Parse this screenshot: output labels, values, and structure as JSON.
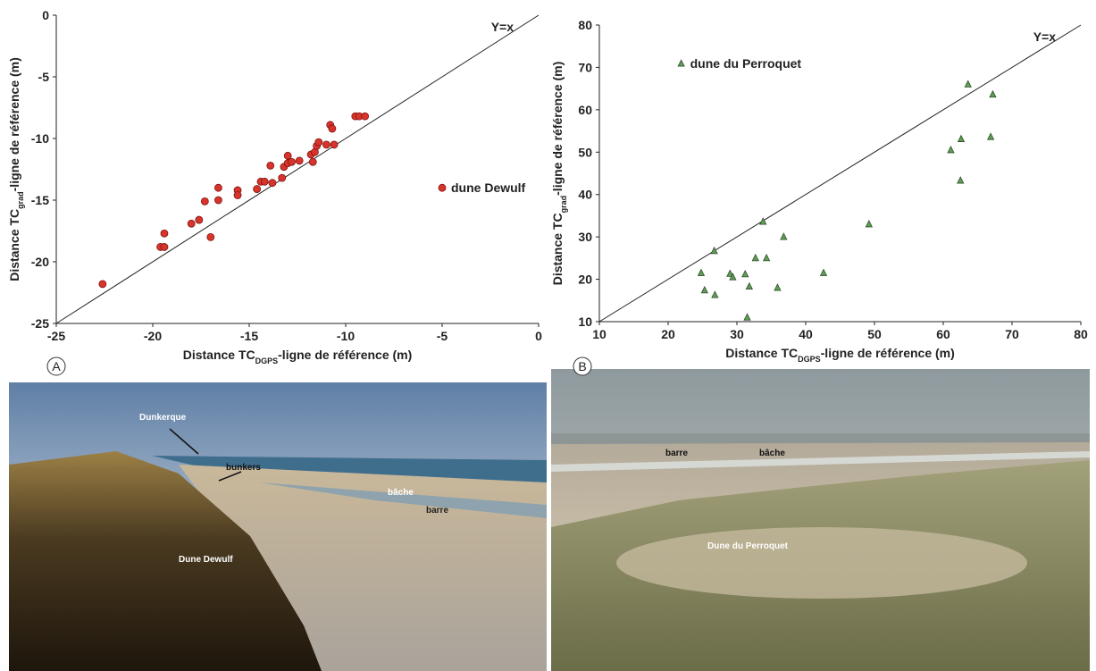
{
  "chart_data": [
    {
      "type": "scatter",
      "marker": "circle",
      "color": "#d9342b",
      "xlabel": [
        "Distance TC",
        "DGPS",
        "-ligne de référence (m)"
      ],
      "ylabel": [
        "Distance TC",
        "grad",
        "-ligne de référence (m)"
      ],
      "annotation": "Y=x",
      "legend": "right",
      "xlim": [
        -25,
        0
      ],
      "ylim": [
        -25,
        0
      ],
      "xticks": [
        -25,
        -20,
        -15,
        -10,
        -5,
        0
      ],
      "yticks": [
        -25,
        -20,
        -15,
        -10,
        -5,
        0
      ],
      "series": [
        {
          "name": "dune Dewulf",
          "color": "#d9342b",
          "x": [
            -22.6,
            -19.6,
            -19.4,
            -19.4,
            -18,
            -17.6,
            -17.3,
            -17,
            -16.6,
            -16.6,
            -15.6,
            -15.6,
            -14.6,
            -14.4,
            -14.2,
            -13.9,
            -13.8,
            -13.3,
            -13.2,
            -13,
            -13,
            -12.8,
            -12.4,
            -11.8,
            -11.7,
            -11.6,
            -11.5,
            -11.4,
            -11,
            -10.8,
            -10.7,
            -10.6,
            -9.5,
            -9.3,
            -9
          ],
          "values": [
            -21.8,
            -18.8,
            -18.8,
            -17.7,
            -16.9,
            -16.6,
            -15.1,
            -18,
            -14,
            -15,
            -14.2,
            -14.6,
            -14.1,
            -13.5,
            -13.5,
            -12.2,
            -13.6,
            -13.2,
            -12.3,
            -11.4,
            -12,
            -11.9,
            -11.8,
            -11.3,
            -11.9,
            -11.1,
            -10.6,
            -10.3,
            -10.5,
            -8.9,
            -9.2,
            -10.5,
            -8.2,
            -8.2,
            -8.2
          ]
        }
      ]
    },
    {
      "type": "scatter",
      "marker": "triangle",
      "color": "#5f9e55",
      "xlabel": [
        "Distance TC",
        "DGPS",
        "-ligne de référence (m)"
      ],
      "ylabel": [
        "Distance TC",
        "grad",
        "-ligne de référence (m)"
      ],
      "annotation": "Y=x",
      "legend": "upper left",
      "xlim": [
        10,
        80
      ],
      "ylim": [
        10,
        80
      ],
      "xticks": [
        10,
        20,
        30,
        40,
        50,
        60,
        70,
        80
      ],
      "yticks": [
        10,
        20,
        30,
        40,
        50,
        60,
        70,
        80
      ],
      "series": [
        {
          "name": "dune du Perroquet",
          "color": "#5f9e55",
          "x": [
            24.8,
            25.3,
            26.7,
            26.8,
            29,
            29.4,
            31.2,
            31.5,
            31.8,
            32.7,
            33.8,
            34.3,
            35.9,
            36.8,
            42.6,
            49.2,
            61.1,
            62.5,
            62.6,
            63.6,
            66.9,
            67.2
          ],
          "values": [
            21.5,
            17.4,
            26.7,
            16.3,
            21.3,
            20.5,
            21.2,
            11,
            18.3,
            25,
            33.6,
            25,
            18,
            30,
            21.5,
            33,
            50.5,
            43.3,
            53.1,
            66,
            53.6,
            63.6
          ]
        }
      ]
    }
  ],
  "photos": [
    {
      "panel": "A",
      "labels": [
        "Dunkerque",
        "bunkers",
        "bâche",
        "barre",
        "Dune Dewulf"
      ]
    },
    {
      "panel": "B",
      "labels": [
        "barre",
        "bâche",
        "Dune du Perroquet"
      ]
    }
  ]
}
